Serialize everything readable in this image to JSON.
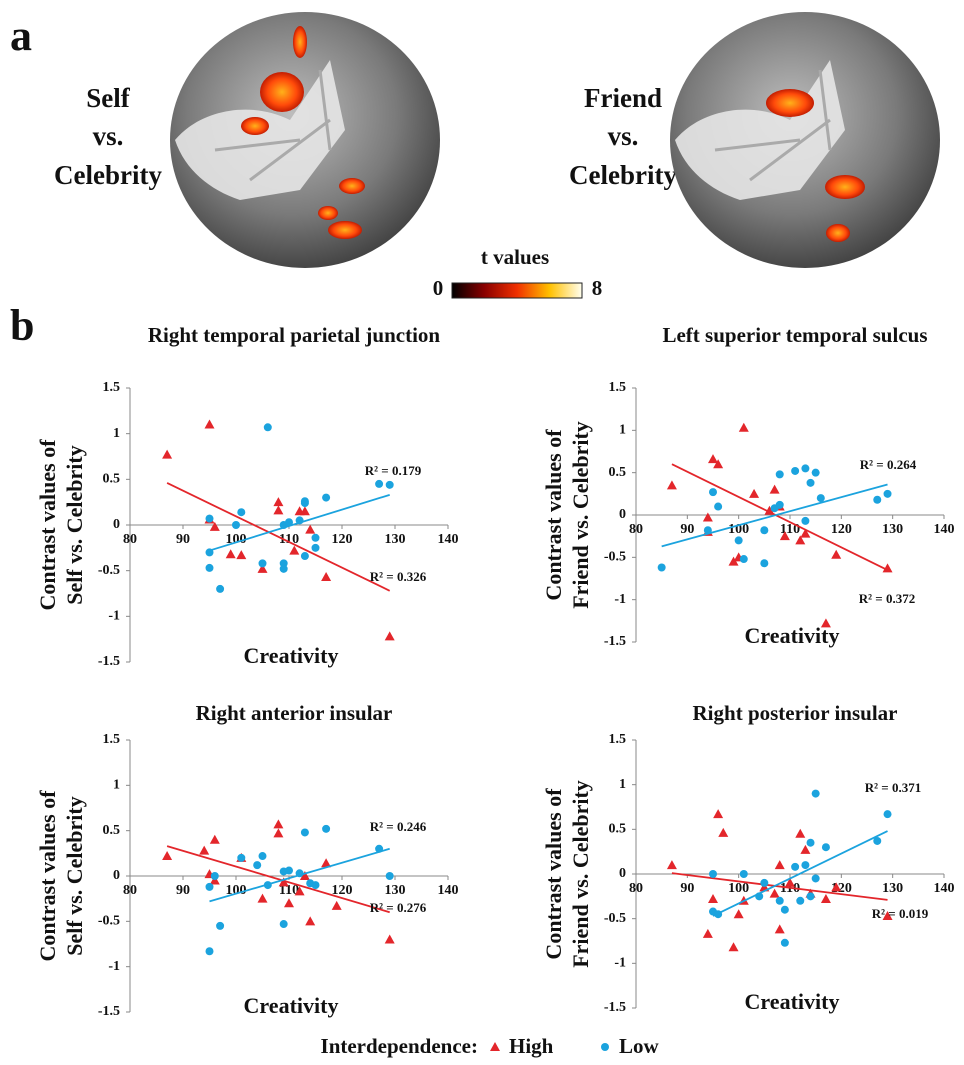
{
  "panel_a": {
    "label": "a",
    "panels": [
      {
        "caption": [
          "Self",
          "vs.",
          "Celebrity"
        ]
      },
      {
        "caption": [
          "Friend",
          "vs.",
          "Celebrity"
        ]
      }
    ],
    "colorbar": {
      "title": "t values",
      "min": 0,
      "max": 8
    }
  },
  "panel_b": {
    "label": "b"
  },
  "legend_title": "Interdependence:",
  "chart_data": [
    {
      "type": "scatter",
      "title": "Right temporal parietal junction",
      "ylabel": [
        "Contrast values of",
        "Self vs. Celebrity"
      ],
      "xlabel": "Creativity",
      "xlim": [
        80,
        140
      ],
      "xticks": [
        80,
        90,
        100,
        110,
        120,
        130,
        140
      ],
      "ylim": [
        -1.5,
        1.5
      ],
      "yticks": [
        -1.5,
        -1,
        -0.5,
        0,
        0.5,
        1,
        1.5
      ],
      "series": [
        {
          "name": "High",
          "color": "#e3262b",
          "marker": "triangle",
          "x": [
            87,
            95,
            95,
            96,
            99,
            101,
            105,
            108,
            108,
            111,
            112,
            113,
            114,
            117,
            129
          ],
          "values": [
            0.77,
            1.1,
            0.06,
            -0.02,
            -0.32,
            -0.33,
            -0.48,
            0.25,
            0.16,
            -0.28,
            0.15,
            0.15,
            -0.05,
            -0.57,
            -1.22
          ],
          "trendline": {
            "x": [
              87,
              129
            ],
            "y": [
              0.46,
              -0.72
            ]
          },
          "annotation": "R² = 0.326"
        },
        {
          "name": "Low",
          "color": "#1ba3de",
          "marker": "circle",
          "x": [
            95,
            95,
            95,
            97,
            101,
            100,
            105,
            106,
            109,
            109,
            109,
            110,
            112,
            113,
            113,
            113,
            115,
            115,
            117,
            127,
            129
          ],
          "values": [
            0.07,
            -0.3,
            -0.47,
            -0.7,
            0.14,
            0,
            -0.42,
            1.07,
            -0.42,
            -0.48,
            0,
            0.03,
            0.05,
            0.24,
            0.26,
            -0.34,
            -0.25,
            -0.14,
            0.3,
            0.45,
            0.44
          ],
          "trendline": {
            "x": [
              95,
              129
            ],
            "y": [
              -0.28,
              0.33
            ]
          },
          "annotation": "R² = 0.179"
        }
      ]
    },
    {
      "type": "scatter",
      "title": "Left superior temporal sulcus",
      "ylabel": [
        "Contrast values of",
        "Friend vs. Celebrity"
      ],
      "xlabel": "Creativity",
      "xlim": [
        80,
        140
      ],
      "xticks": [
        80,
        90,
        100,
        110,
        120,
        130,
        140
      ],
      "ylim": [
        -1.5,
        1.5
      ],
      "yticks": [
        -1.5,
        -1,
        -0.5,
        0,
        0.5,
        1,
        1.5
      ],
      "series": [
        {
          "name": "High",
          "color": "#e3262b",
          "marker": "triangle",
          "x": [
            87,
            95,
            96,
            94,
            94,
            99,
            101,
            100,
            103,
            107,
            108,
            106,
            109,
            112,
            113,
            119,
            117,
            129
          ],
          "values": [
            0.35,
            0.66,
            0.6,
            -0.03,
            -0.2,
            -0.55,
            1.03,
            -0.5,
            0.25,
            0.3,
            0.1,
            0.05,
            -0.25,
            -0.3,
            -0.22,
            -0.47,
            -1.28,
            -0.63
          ],
          "trendline": {
            "x": [
              87,
              129
            ],
            "y": [
              0.6,
              -0.65
            ]
          },
          "annotation": "R² = 0.372"
        },
        {
          "name": "Low",
          "color": "#1ba3de",
          "marker": "circle",
          "x": [
            85,
            94,
            95,
            96,
            100,
            101,
            105,
            105,
            107,
            108,
            108,
            111,
            113,
            113,
            114,
            115,
            116,
            127,
            129
          ],
          "values": [
            -0.62,
            -0.18,
            0.27,
            0.1,
            -0.3,
            -0.52,
            -0.57,
            -0.18,
            0.08,
            0.48,
            0.12,
            0.52,
            0.55,
            -0.07,
            0.38,
            0.5,
            0.2,
            0.18,
            0.25
          ],
          "trendline": {
            "x": [
              85,
              129
            ],
            "y": [
              -0.37,
              0.36
            ]
          },
          "annotation": "R² = 0.264"
        }
      ]
    },
    {
      "type": "scatter",
      "title": "Right anterior insular",
      "ylabel": [
        "Contrast values of",
        "Self vs. Celebrity"
      ],
      "xlabel": "Creativity",
      "xlim": [
        80,
        140
      ],
      "xticks": [
        80,
        90,
        100,
        110,
        120,
        130,
        140
      ],
      "ylim": [
        -1.5,
        1.5
      ],
      "yticks": [
        -1.5,
        -1,
        -0.5,
        0,
        0.5,
        1,
        1.5
      ],
      "series": [
        {
          "name": "High",
          "color": "#e3262b",
          "marker": "triangle",
          "x": [
            87,
            94,
            95,
            96,
            96,
            101,
            105,
            108,
            108,
            109,
            110,
            112,
            113,
            114,
            117,
            119,
            129
          ],
          "values": [
            0.22,
            0.28,
            0.02,
            0.4,
            -0.05,
            0.2,
            -0.25,
            0.57,
            0.47,
            -0.07,
            -0.3,
            -0.17,
            0,
            -0.5,
            0.14,
            -0.33,
            -0.7
          ],
          "trendline": {
            "x": [
              87,
              129
            ],
            "y": [
              0.33,
              -0.4
            ]
          },
          "annotation": "R² = 0.276"
        },
        {
          "name": "Low",
          "color": "#1ba3de",
          "marker": "circle",
          "x": [
            95,
            95,
            96,
            97,
            101,
            104,
            105,
            106,
            109,
            109,
            110,
            112,
            113,
            114,
            115,
            117,
            127,
            129
          ],
          "values": [
            -0.83,
            -0.12,
            0,
            -0.55,
            0.2,
            0.12,
            0.22,
            -0.1,
            0.05,
            -0.53,
            0.06,
            0.03,
            0.48,
            -0.08,
            -0.1,
            0.52,
            0.3,
            0
          ],
          "trendline": {
            "x": [
              95,
              129
            ],
            "y": [
              -0.28,
              0.3
            ]
          },
          "annotation": "R² = 0.246"
        }
      ]
    },
    {
      "type": "scatter",
      "title": "Right posterior insular",
      "ylabel": [
        "Contrast values of",
        "Friend vs. Celebrity"
      ],
      "xlabel": "Creativity",
      "xlim": [
        80,
        140
      ],
      "xticks": [
        80,
        90,
        100,
        110,
        120,
        130,
        140
      ],
      "ylim": [
        -1.5,
        1.5
      ],
      "yticks": [
        -1.5,
        -1,
        -0.5,
        0,
        0.5,
        1,
        1.5
      ],
      "series": [
        {
          "name": "High",
          "color": "#e3262b",
          "marker": "triangle",
          "x": [
            87,
            94,
            95,
            96,
            97,
            99,
            100,
            101,
            105,
            107,
            108,
            108,
            110,
            112,
            113,
            114,
            117,
            119,
            129
          ],
          "values": [
            0.1,
            -0.67,
            -0.28,
            0.67,
            0.46,
            -0.82,
            -0.45,
            -0.3,
            -0.15,
            -0.22,
            0.1,
            -0.62,
            -0.1,
            0.45,
            0.27,
            -0.22,
            -0.28,
            -0.15,
            -0.47
          ],
          "trendline": {
            "x": [
              87,
              129
            ],
            "y": [
              0.01,
              -0.29
            ]
          },
          "annotation": "R² = 0.019"
        },
        {
          "name": "Low",
          "color": "#1ba3de",
          "marker": "circle",
          "x": [
            95,
            95,
            96,
            101,
            104,
            105,
            108,
            109,
            109,
            111,
            112,
            113,
            114,
            114,
            115,
            115,
            117,
            127,
            129
          ],
          "values": [
            -0.42,
            0,
            -0.45,
            0,
            -0.25,
            -0.1,
            -0.3,
            -0.4,
            -0.77,
            0.08,
            -0.3,
            0.1,
            0.35,
            -0.25,
            0.9,
            -0.05,
            0.3,
            0.37,
            0.67
          ],
          "trendline": {
            "x": [
              95,
              129
            ],
            "y": [
              -0.47,
              0.48
            ]
          },
          "annotation": "R² = 0.371"
        }
      ]
    }
  ]
}
